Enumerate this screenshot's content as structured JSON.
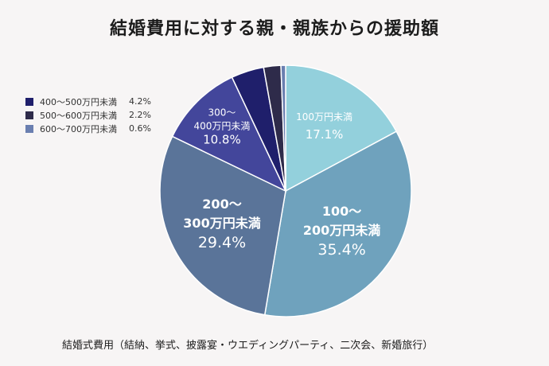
{
  "title": "結婚費用に対する親・親族からの援助額",
  "caption": "結婚式費用（結納、挙式、披露宴・ウエディングパーティ、二次会、新婚旅行）",
  "legend": [
    {
      "label": "400〜500万円未満",
      "value": "4.2%",
      "color": "#1f1f6b"
    },
    {
      "label": "500〜600万円未満",
      "value": "2.2%",
      "color": "#2e2b4a"
    },
    {
      "label": "600〜700万円未満",
      "value": "0.6%",
      "color": "#6a7fb0"
    }
  ],
  "chart_data": {
    "type": "pie",
    "title": "結婚費用に対する親・親族からの援助額",
    "start": "top",
    "direction": "clockwise",
    "slices": [
      {
        "category": "100万円未満",
        "value": 17.1,
        "color": "#93d0dc",
        "label_lines": [
          "100万円未満"
        ],
        "value_label": "17.1%"
      },
      {
        "category": "100〜200万円未満",
        "value": 35.4,
        "color": "#6fa2bd",
        "label_lines": [
          "100〜",
          "200万円未満"
        ],
        "value_label": "35.4%"
      },
      {
        "category": "200〜300万円未満",
        "value": 29.4,
        "color": "#5a7499",
        "label_lines": [
          "200〜",
          "300万円未満"
        ],
        "value_label": "29.4%"
      },
      {
        "category": "300〜400万円未満",
        "value": 10.8,
        "color": "#43469b",
        "label_lines": [
          "300〜",
          "400万円未満"
        ],
        "value_label": "10.8%"
      },
      {
        "category": "400〜500万円未満",
        "value": 4.2,
        "color": "#1f1f6b"
      },
      {
        "category": "500〜600万円未満",
        "value": 2.2,
        "color": "#2e2b4a"
      },
      {
        "category": "600〜700万円未満",
        "value": 0.6,
        "color": "#6a7fb0"
      }
    ],
    "legend_position": "left",
    "caption": "結婚式費用（結納、挙式、披露宴・ウエディングパーティ、二次会、新婚旅行）"
  }
}
